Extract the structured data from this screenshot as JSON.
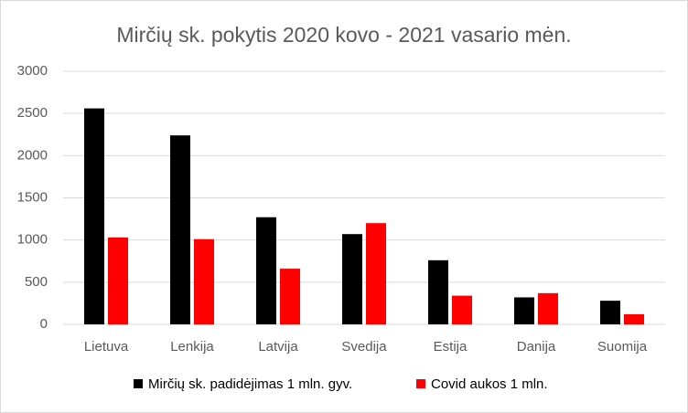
{
  "chart_data": {
    "type": "bar",
    "title": "Mirčių sk. pokytis 2020 kovo - 2021 vasario mėn.",
    "categories": [
      "Lietuva",
      "Lenkija",
      "Latvija",
      "Svedija",
      "Estija",
      "Danija",
      "Suomija"
    ],
    "series": [
      {
        "name": "Mirčių sk. padidėjimas 1 mln. gyv.",
        "color": "#000000",
        "values": [
          2560,
          2240,
          1270,
          1070,
          760,
          320,
          280
        ]
      },
      {
        "name": "Covid aukos 1 mln.",
        "color": "#ff0000",
        "values": [
          1030,
          1010,
          660,
          1200,
          340,
          370,
          120
        ]
      }
    ],
    "ylim": [
      0,
      3000
    ],
    "yticks": [
      0,
      500,
      1000,
      1500,
      2000,
      2500,
      3000
    ],
    "grid": true,
    "legend": "bottom"
  }
}
